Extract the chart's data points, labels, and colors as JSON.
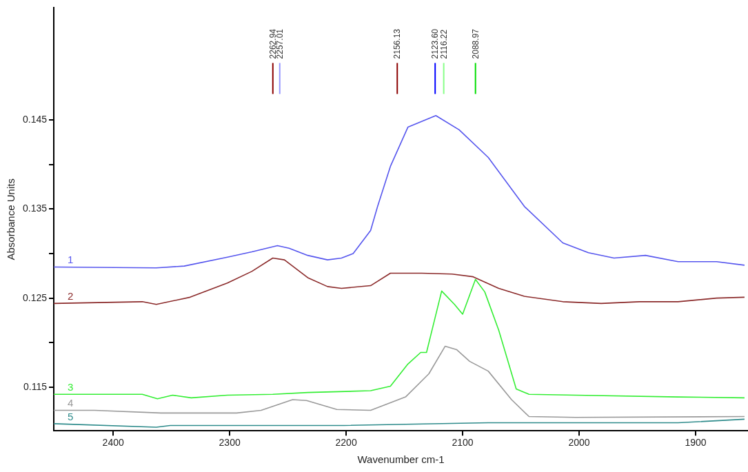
{
  "chart_data": {
    "type": "line",
    "xlabel": "Wavenumber cm-1",
    "ylabel": "Absorbance Units",
    "xlim": [
      2451,
      1855
    ],
    "xticks": [
      2400,
      2300,
      2200,
      2100,
      2000,
      1900
    ],
    "ylim": [
      0.1101,
      0.1576
    ],
    "yticks": [
      0.115,
      {
        "value": 0.12,
        "label": null
      },
      0.125,
      {
        "value": 0.13,
        "label": null
      },
      0.135,
      {
        "value": 0.14,
        "label": null
      },
      0.145
    ],
    "grid": false,
    "legend": false,
    "marker": "none",
    "ref_lines": [
      {
        "axis": "x",
        "value": 2262.94,
        "label": "2262.94",
        "color": "#8b0000"
      },
      {
        "axis": "x",
        "value": 2257.01,
        "label": "2257.01",
        "color": "#9999ff"
      },
      {
        "axis": "x",
        "value": 2156.13,
        "label": "2156.13",
        "color": "#8b0000"
      },
      {
        "axis": "x",
        "value": 2123.6,
        "label": "2123.60",
        "color": "#0000ff"
      },
      {
        "axis": "x",
        "value": 2116.22,
        "label": "2116.22",
        "color": "#88ff88"
      },
      {
        "axis": "x",
        "value": 2088.97,
        "label": "2088.97",
        "color": "#00dd00"
      }
    ],
    "series": [
      {
        "name": "1",
        "color": "#5555ee",
        "x": [
          2451,
          2363,
          2339,
          2302,
          2281,
          2259,
          2249,
          2233,
          2216,
          2204,
          2194,
          2179,
          2173,
          2162,
          2147,
          2123,
          2103,
          2078,
          2047,
          2014,
          1992,
          1970,
          1943,
          1915,
          1882,
          1858
        ],
        "values": [
          0.1285,
          0.1284,
          0.1286,
          0.1296,
          0.1302,
          0.1309,
          0.1306,
          0.1298,
          0.1293,
          0.1295,
          0.13,
          0.1326,
          0.1353,
          0.1398,
          0.1442,
          0.1455,
          0.1439,
          0.1408,
          0.1353,
          0.1312,
          0.1301,
          0.1295,
          0.1298,
          0.1291,
          0.1291,
          0.1287
        ]
      },
      {
        "name": "2",
        "color": "#8b2a2a",
        "x": [
          2451,
          2375,
          2363,
          2334,
          2302,
          2281,
          2263,
          2253,
          2233,
          2216,
          2204,
          2179,
          2162,
          2135,
          2109,
          2091,
          2069,
          2047,
          2014,
          1981,
          1948,
          1915,
          1882,
          1858
        ],
        "values": [
          0.1244,
          0.1246,
          0.1243,
          0.1251,
          0.1267,
          0.128,
          0.1295,
          0.1293,
          0.1273,
          0.1263,
          0.1261,
          0.1264,
          0.1278,
          0.1278,
          0.1277,
          0.1274,
          0.1261,
          0.1252,
          0.1246,
          0.1244,
          0.1246,
          0.1246,
          0.125,
          0.1251
        ]
      },
      {
        "name": "3",
        "color": "#33ee33",
        "x": [
          2451,
          2375,
          2362,
          2349,
          2333,
          2302,
          2263,
          2233,
          2179,
          2162,
          2147,
          2136,
          2131,
          2118,
          2107,
          2100,
          2089,
          2081,
          2069,
          2054,
          2043,
          2003,
          1915,
          1858
        ],
        "values": [
          0.1142,
          0.1142,
          0.1137,
          0.1141,
          0.1138,
          0.1141,
          0.1142,
          0.1144,
          0.1146,
          0.1151,
          0.1176,
          0.1189,
          0.1189,
          0.1258,
          0.1243,
          0.1232,
          0.1271,
          0.1257,
          0.1214,
          0.1148,
          0.1142,
          0.1141,
          0.1139,
          0.1138
        ]
      },
      {
        "name": "4",
        "color": "#999999",
        "x": [
          2451,
          2416,
          2359,
          2294,
          2273,
          2246,
          2234,
          2208,
          2179,
          2149,
          2129,
          2115,
          2105,
          2094,
          2078,
          2058,
          2043,
          2003,
          1858
        ],
        "values": [
          0.1124,
          0.1124,
          0.1121,
          0.1121,
          0.1124,
          0.1136,
          0.1135,
          0.1125,
          0.1124,
          0.1139,
          0.1165,
          0.1196,
          0.1192,
          0.1179,
          0.1168,
          0.1136,
          0.1117,
          0.1116,
          0.1117
        ]
      },
      {
        "name": "5",
        "color": "#2e8b8b",
        "x": [
          2451,
          2363,
          2351,
          2202,
          2078,
          1915,
          1858
        ],
        "values": [
          0.1109,
          0.1105,
          0.1107,
          0.1107,
          0.111,
          0.111,
          0.1114
        ]
      }
    ]
  }
}
